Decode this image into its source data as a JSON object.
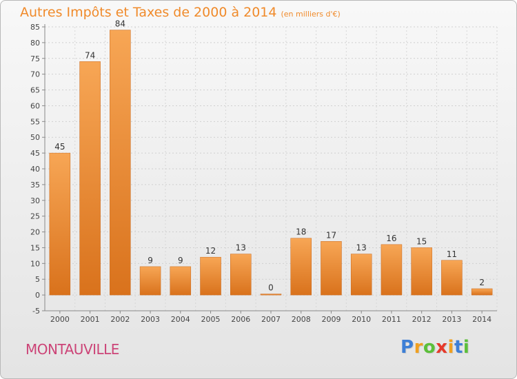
{
  "title": "Autres Impôts et Taxes de 2000 à 2014",
  "unit": "(en milliers d'€)",
  "commune": "MONTAUVILLE",
  "logo": {
    "text": "Proxiti",
    "letters": [
      {
        "ch": "P",
        "color": "#3d7fd6"
      },
      {
        "ch": "r",
        "color": "#f0a020"
      },
      {
        "ch": "o",
        "color": "#5cbf3a"
      },
      {
        "ch": "x",
        "color": "#e6392a"
      },
      {
        "ch": "i",
        "color": "#f0a020"
      },
      {
        "ch": "t",
        "color": "#3d7fd6"
      },
      {
        "ch": "i",
        "color": "#5cbf3a"
      }
    ]
  },
  "colors": {
    "title": "#f08a2a",
    "bar_light": "#f7a655",
    "bar_dark": "#d9721c",
    "commune": "#cc4477"
  },
  "chart_data": {
    "type": "bar",
    "categories": [
      "2000",
      "2001",
      "2002",
      "2003",
      "2004",
      "2005",
      "2006",
      "2007",
      "2008",
      "2009",
      "2010",
      "2011",
      "2012",
      "2013",
      "2014"
    ],
    "values": [
      45,
      74,
      84,
      9,
      9,
      12,
      13,
      0,
      18,
      17,
      13,
      16,
      15,
      11,
      2
    ],
    "ylim": [
      -5,
      85
    ],
    "yticks": [
      -5,
      0,
      5,
      10,
      15,
      20,
      25,
      30,
      35,
      40,
      45,
      50,
      55,
      60,
      65,
      70,
      75,
      80,
      85
    ],
    "grid": true,
    "data_labels": true
  }
}
